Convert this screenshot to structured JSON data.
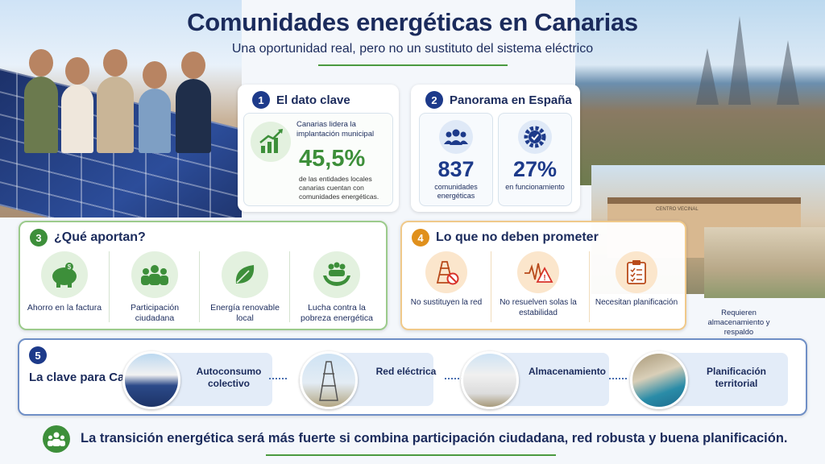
{
  "header": {
    "title": "Comunidades energéticas en Canarias",
    "subtitle": "Una oportunidad real, pero no un sustituto del sistema eléctrico"
  },
  "dato_clave": {
    "number": "1",
    "heading": "El dato clave",
    "lead": "Canarias lidera la implantación municipal",
    "value": "45,5%",
    "description": "de las entidades locales canarias cuentan con comunidades energéticas.",
    "icon": "growth-chart-icon"
  },
  "panorama": {
    "number": "2",
    "heading": "Panorama en España",
    "stats": [
      {
        "value": "837",
        "label": "comunidades energéticas",
        "icon": "people-icon"
      },
      {
        "value": "27%",
        "label": "en funcionamiento",
        "icon": "gear-check-icon"
      }
    ]
  },
  "aportan": {
    "number": "3",
    "heading": "¿Qué aportan?",
    "items": [
      {
        "label": "Ahorro en la factura",
        "icon": "piggy-bank-icon"
      },
      {
        "label": "Participación ciudadana",
        "icon": "group-icon"
      },
      {
        "label": "Energía renovable local",
        "icon": "leaf-icon"
      },
      {
        "label": "Lucha contra la pobreza energética",
        "icon": "helping-hands-icon"
      }
    ]
  },
  "no_prometer": {
    "number": "4",
    "heading": "Lo que no deben prometer",
    "items": [
      {
        "label": "No sustituyen la red",
        "icon": "no-pylon-icon"
      },
      {
        "label": "No resuelven solas la estabilidad",
        "icon": "warning-wave-icon"
      },
      {
        "label": "Necesitan planificación",
        "icon": "clipboard-icon"
      }
    ],
    "extra": "Requieren almacenamiento y respaldo"
  },
  "clave": {
    "number": "5",
    "heading": "La clave para Canarias",
    "steps": [
      {
        "label": "Autoconsumo colectivo"
      },
      {
        "label": "Red eléctrica"
      },
      {
        "label": "Almacenamiento"
      },
      {
        "label": "Planificación territorial"
      }
    ]
  },
  "footer": {
    "text": "La transición energética será más fuerte si combina participación ciudadana, red robusta y buena planificación."
  },
  "photo_sign": "CENTRO VECINAL",
  "colors": {
    "navy": "#1b2b5c",
    "green": "#3d8f3a",
    "orange": "#e0901c",
    "blue": "#1d3a8a"
  }
}
